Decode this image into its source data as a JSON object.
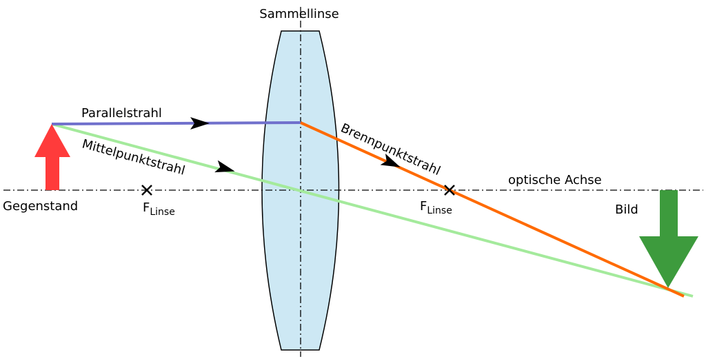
{
  "title": "Sammellinse",
  "rays": {
    "parallel": "Parallelstrahl",
    "center": "Mittelpunktstrahl",
    "focal": "Brennpunktstrahl"
  },
  "axis_label": "optische Achse",
  "object_label": "Gegenstand",
  "image_label": "Bild",
  "focal_points": [
    {
      "symbol": "F",
      "subscript": "Linse"
    },
    {
      "symbol": "F",
      "subscript": "Linse"
    }
  ]
}
